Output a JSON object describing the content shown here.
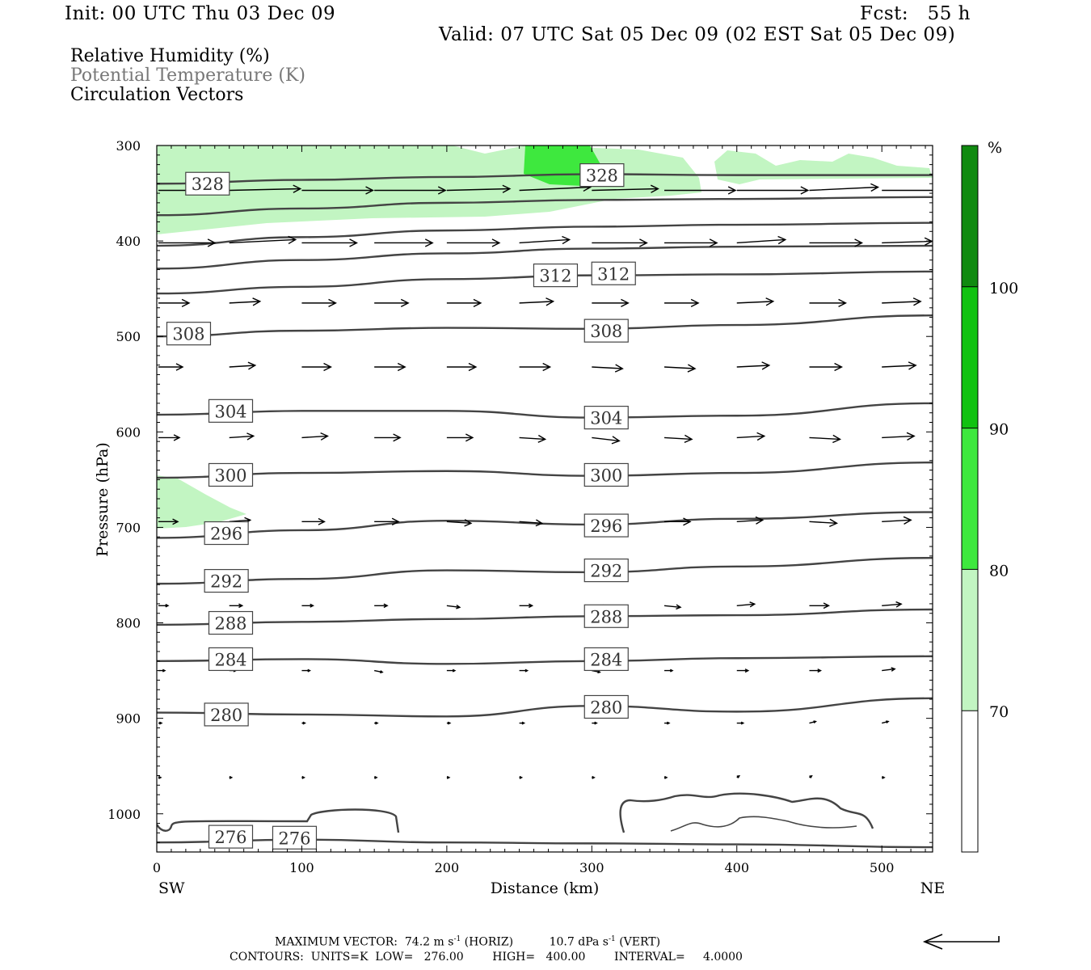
{
  "header": {
    "init": "Init: 00 UTC Thu 03 Dec 09",
    "fcst": "Fcst:   55 h",
    "valid": "Valid: 07 UTC Sat 05 Dec 09 (02 EST Sat 05 Dec 09)"
  },
  "legend": {
    "rh": "Relative Humidity (%)",
    "theta": "Potential Temperature (K)",
    "vectors": "Circulation Vectors"
  },
  "footer": {
    "maxvec_label": "MAXIMUM VECTOR:",
    "maxvec_h": "74.2 m s",
    "maxvec_h_unit": "(HORIZ)",
    "maxvec_v": "10.7 dPa s",
    "maxvec_v_unit": "(VERT)",
    "sup": "-1",
    "contours": "CONTOURS:  UNITS=K  LOW=   276.00        HIGH=   400.00        INTERVAL=     4.0000"
  },
  "chart_data": {
    "type": "contour-cross-section",
    "xlabel": "Distance (km)",
    "ylabel": "Pressure (hPa)",
    "x_left_label": "SW",
    "x_right_label": "NE",
    "xlim": [
      0,
      535
    ],
    "ylim": [
      300,
      1040
    ],
    "x_ticks": [
      0,
      100,
      200,
      300,
      400,
      500
    ],
    "y_ticks": [
      300,
      400,
      500,
      600,
      700,
      800,
      900,
      1000
    ],
    "colorbar": {
      "unit": "%",
      "levels": [
        70,
        80,
        90,
        100
      ],
      "colors": [
        "#ffffff",
        "#c2f5c2",
        "#3ee83e",
        "#11c211",
        "#108a10"
      ]
    },
    "isentropes": [
      {
        "value": 328,
        "points": [
          [
            0,
            340
          ],
          [
            100,
            336
          ],
          [
            200,
            333
          ],
          [
            300,
            330
          ],
          [
            400,
            331
          ],
          [
            535,
            331
          ]
        ],
        "labels": [
          [
            35,
            340
          ],
          [
            307,
            331
          ]
        ]
      },
      {
        "value": 324,
        "points": [
          [
            0,
            373
          ],
          [
            100,
            366
          ],
          [
            200,
            360
          ],
          [
            300,
            357
          ],
          [
            400,
            356
          ],
          [
            535,
            354
          ]
        ],
        "labels": []
      },
      {
        "value": 320,
        "points": [
          [
            0,
            405
          ],
          [
            100,
            396
          ],
          [
            200,
            389
          ],
          [
            300,
            385
          ],
          [
            400,
            383
          ],
          [
            535,
            381
          ]
        ],
        "labels": []
      },
      {
        "value": 316,
        "points": [
          [
            0,
            429
          ],
          [
            100,
            420
          ],
          [
            200,
            413
          ],
          [
            300,
            408
          ],
          [
            400,
            406
          ],
          [
            535,
            405
          ]
        ],
        "labels": []
      },
      {
        "value": 312,
        "points": [
          [
            0,
            455
          ],
          [
            100,
            448
          ],
          [
            200,
            440
          ],
          [
            300,
            436
          ],
          [
            400,
            435
          ],
          [
            535,
            432
          ]
        ],
        "labels": [
          [
            275,
            436
          ],
          [
            315,
            434
          ]
        ]
      },
      {
        "value": 308,
        "points": [
          [
            0,
            500
          ],
          [
            100,
            494
          ],
          [
            200,
            491
          ],
          [
            300,
            492
          ],
          [
            400,
            488
          ],
          [
            535,
            478
          ]
        ],
        "labels": [
          [
            22,
            497
          ],
          [
            310,
            494
          ]
        ]
      },
      {
        "value": 304,
        "points": [
          [
            0,
            582
          ],
          [
            100,
            578
          ],
          [
            200,
            578
          ],
          [
            300,
            585
          ],
          [
            400,
            583
          ],
          [
            535,
            570
          ]
        ],
        "labels": [
          [
            51,
            578
          ],
          [
            310,
            585
          ]
        ]
      },
      {
        "value": 300,
        "points": [
          [
            0,
            648
          ],
          [
            100,
            643
          ],
          [
            200,
            641
          ],
          [
            300,
            646
          ],
          [
            400,
            643
          ],
          [
            535,
            632
          ]
        ],
        "labels": [
          [
            51,
            645
          ],
          [
            310,
            645
          ]
        ]
      },
      {
        "value": 296,
        "points": [
          [
            0,
            711
          ],
          [
            100,
            703
          ],
          [
            200,
            693
          ],
          [
            300,
            697
          ],
          [
            400,
            691
          ],
          [
            535,
            684
          ]
        ],
        "labels": [
          [
            48,
            706
          ],
          [
            310,
            698
          ]
        ]
      },
      {
        "value": 292,
        "points": [
          [
            0,
            759
          ],
          [
            100,
            754
          ],
          [
            200,
            745
          ],
          [
            300,
            747
          ],
          [
            400,
            741
          ],
          [
            535,
            732
          ]
        ],
        "labels": [
          [
            48,
            756
          ],
          [
            310,
            745
          ]
        ]
      },
      {
        "value": 288,
        "points": [
          [
            0,
            802
          ],
          [
            100,
            799
          ],
          [
            200,
            796
          ],
          [
            300,
            793
          ],
          [
            400,
            792
          ],
          [
            535,
            786
          ]
        ],
        "labels": [
          [
            51,
            800
          ],
          [
            310,
            793
          ]
        ]
      },
      {
        "value": 284,
        "points": [
          [
            0,
            840
          ],
          [
            100,
            838
          ],
          [
            200,
            843
          ],
          [
            300,
            840
          ],
          [
            400,
            837
          ],
          [
            535,
            835
          ]
        ],
        "labels": [
          [
            51,
            838
          ],
          [
            310,
            838
          ]
        ]
      },
      {
        "value": 280,
        "points": [
          [
            0,
            894
          ],
          [
            100,
            896
          ],
          [
            200,
            898
          ],
          [
            300,
            887
          ],
          [
            400,
            893
          ],
          [
            535,
            879
          ]
        ],
        "labels": [
          [
            48,
            896
          ],
          [
            310,
            888
          ]
        ]
      },
      {
        "value": 276,
        "points": [
          [
            0,
            1030
          ],
          [
            100,
            1027
          ],
          [
            200,
            1030
          ],
          [
            300,
            1031
          ],
          [
            400,
            1032
          ],
          [
            535,
            1035
          ]
        ],
        "labels": [
          [
            51,
            1024
          ],
          [
            95,
            1025
          ]
        ]
      }
    ],
    "vectors_note": "circulation vectors mostly pointing eastward (SW to NE), longest near 300-400 hPa"
  }
}
